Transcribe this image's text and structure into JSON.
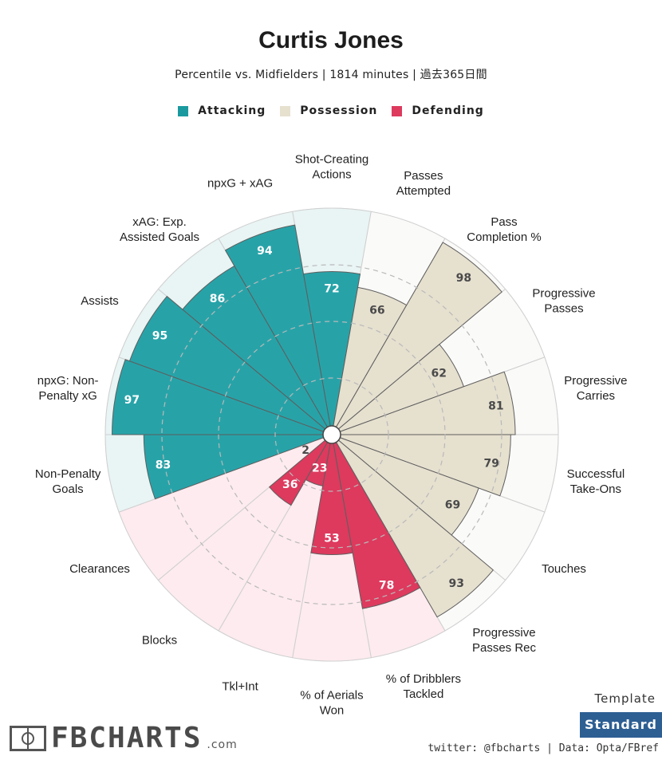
{
  "title": "Curtis Jones",
  "subtitle": "Percentile vs. Midfielders | 1814 minutes | 過去365日間",
  "legend": [
    {
      "label": "Attacking",
      "color": "#1a9a9f"
    },
    {
      "label": "Possession",
      "color": "#e6e0cf"
    },
    {
      "label": "Defending",
      "color": "#dd3a5e"
    }
  ],
  "chart_data": {
    "type": "polar_bar",
    "title": "Curtis Jones",
    "subtitle": "Percentile vs. Midfielders | 1814 minutes | 過去365日間",
    "rlim": [
      0,
      100
    ],
    "gridlines": [
      25,
      50,
      75
    ],
    "start_category": "Shot-Creating Actions",
    "direction": "clockwise",
    "groups": {
      "Attacking": {
        "fill": "#27a3a8",
        "bg": "#e9f4f4"
      },
      "Possession": {
        "fill": "#e6e0cf",
        "bg": "#fafaf9"
      },
      "Defending": {
        "fill": "#dd3a5e",
        "bg": "#fdebef"
      }
    },
    "categories": [
      {
        "label": "Shot-Creating\nActions",
        "value": 72,
        "group": "Attacking"
      },
      {
        "label": "Passes\nAttempted",
        "value": 66,
        "group": "Possession"
      },
      {
        "label": "Pass\nCompletion %",
        "value": 98,
        "group": "Possession"
      },
      {
        "label": "Progressive\nPasses",
        "value": 62,
        "group": "Possession"
      },
      {
        "label": "Progressive\nCarries",
        "value": 81,
        "group": "Possession"
      },
      {
        "label": "Successful\nTake-Ons",
        "value": 79,
        "group": "Possession"
      },
      {
        "label": "Touches",
        "value": 69,
        "group": "Possession"
      },
      {
        "label": "Progressive\nPasses Rec",
        "value": 93,
        "group": "Possession"
      },
      {
        "label": "% of Dribblers\nTackled",
        "value": 78,
        "group": "Defending"
      },
      {
        "label": "% of Aerials\nWon",
        "value": 53,
        "group": "Defending"
      },
      {
        "label": "Tkl+Int",
        "value": 23,
        "group": "Defending"
      },
      {
        "label": "Blocks",
        "value": 36,
        "group": "Defending"
      },
      {
        "label": "Clearances",
        "value": 2,
        "group": "Defending"
      },
      {
        "label": "Non-Penalty\nGoals",
        "value": 83,
        "group": "Attacking"
      },
      {
        "label": "npxG: Non-\nPenalty xG",
        "value": 97,
        "group": "Attacking"
      },
      {
        "label": "Assists",
        "value": 95,
        "group": "Attacking"
      },
      {
        "label": "xAG: Exp.\nAssisted Goals",
        "value": 86,
        "group": "Attacking"
      },
      {
        "label": "npxG + xAG",
        "value": 94,
        "group": "Attacking"
      }
    ]
  },
  "branding": {
    "logo_text": "FBCHARTS",
    "logo_suffix": ".com",
    "template_label": "Template",
    "template_value": "Standard",
    "credits": "twitter: @fbcharts | Data: Opta/FBref"
  }
}
